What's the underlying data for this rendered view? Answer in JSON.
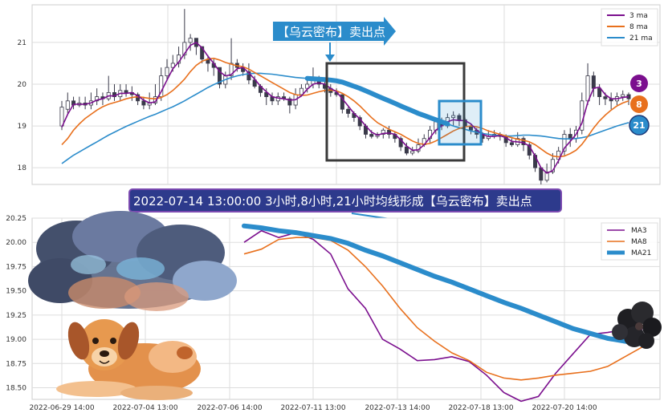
{
  "colors": {
    "ma3": "#7b0f8e",
    "ma8": "#e8701d",
    "ma21": "#2b8ccb",
    "candle_up": "#ffffff",
    "candle_down": "#3a3a4a",
    "callout_bg": "#2b8ccb",
    "banner_bg": "#2d3a8c",
    "grid": "#dddddd"
  },
  "callout": {
    "text": "【乌云密布】卖出点"
  },
  "banner": {
    "text": "2022-07-14 13:00:00 3小时,8小时,21小时均线形成【乌云密布】卖出点"
  },
  "badges": {
    "b3": "3",
    "b8": "8",
    "b21": "21"
  },
  "icons": [
    "storm-cloud-icon",
    "dog-icon",
    "dark-cloud-icon"
  ],
  "chart_data": [
    {
      "type": "candlestick",
      "legend_position": "top-right",
      "grid": true,
      "yticks": [
        "18",
        "19",
        "20",
        "21"
      ],
      "ylim": [
        17.6,
        21.9
      ],
      "legend": [
        {
          "label": "3 ma",
          "color": "#7b0f8e"
        },
        {
          "label": "8 ma",
          "color": "#e8701d"
        },
        {
          "label": "21 ma",
          "color": "#2b8ccb"
        }
      ],
      "candles": [
        [
          19.0,
          19.45,
          19.6,
          18.9
        ],
        [
          19.4,
          19.6,
          19.8,
          19.3
        ],
        [
          19.6,
          19.5,
          19.7,
          19.4
        ],
        [
          19.5,
          19.55,
          19.7,
          19.45
        ],
        [
          19.55,
          19.5,
          19.7,
          19.4
        ],
        [
          19.5,
          19.6,
          19.8,
          19.4
        ],
        [
          19.6,
          19.7,
          19.9,
          19.5
        ],
        [
          19.7,
          19.65,
          19.8,
          19.5
        ],
        [
          19.65,
          19.8,
          20.2,
          19.6
        ],
        [
          19.8,
          19.7,
          20.0,
          19.6
        ],
        [
          19.7,
          19.85,
          20.0,
          19.6
        ],
        [
          19.85,
          19.8,
          20.0,
          19.7
        ],
        [
          19.8,
          19.75,
          19.95,
          19.6
        ],
        [
          19.75,
          19.6,
          19.8,
          19.5
        ],
        [
          19.6,
          19.5,
          19.7,
          19.4
        ],
        [
          19.5,
          19.55,
          19.8,
          19.4
        ],
        [
          19.55,
          19.7,
          20.0,
          19.5
        ],
        [
          19.7,
          20.2,
          20.4,
          19.6
        ],
        [
          20.2,
          20.4,
          20.6,
          20.1
        ],
        [
          20.4,
          20.5,
          20.7,
          20.3
        ],
        [
          20.5,
          20.7,
          20.9,
          20.4
        ],
        [
          20.7,
          21.0,
          21.8,
          20.6
        ],
        [
          21.0,
          21.1,
          21.2,
          20.8
        ],
        [
          21.1,
          20.9,
          21.1,
          20.7
        ],
        [
          20.9,
          20.6,
          20.9,
          20.5
        ],
        [
          20.6,
          20.5,
          20.7,
          20.3
        ],
        [
          20.5,
          20.4,
          20.6,
          20.2
        ],
        [
          20.4,
          20.0,
          20.4,
          19.9
        ],
        [
          20.0,
          20.2,
          20.3,
          19.9
        ],
        [
          20.2,
          20.5,
          21.1,
          20.1
        ],
        [
          20.5,
          20.4,
          20.6,
          20.3
        ],
        [
          20.4,
          20.3,
          20.5,
          20.2
        ],
        [
          20.3,
          20.1,
          20.5,
          20.0
        ],
        [
          20.1,
          19.95,
          20.2,
          19.9
        ],
        [
          19.95,
          19.8,
          20.0,
          19.7
        ],
        [
          19.8,
          19.7,
          19.9,
          19.5
        ],
        [
          19.7,
          19.6,
          19.8,
          19.5
        ],
        [
          19.6,
          19.7,
          19.8,
          19.5
        ],
        [
          19.7,
          19.65,
          19.8,
          19.6
        ],
        [
          19.65,
          19.5,
          19.7,
          19.3
        ],
        [
          19.5,
          19.75,
          19.9,
          19.4
        ],
        [
          19.75,
          19.9,
          20.0,
          19.7
        ],
        [
          19.9,
          20.0,
          20.1,
          19.8
        ],
        [
          20.0,
          20.1,
          20.4,
          19.9
        ],
        [
          20.1,
          20.0,
          20.2,
          19.9
        ],
        [
          20.0,
          19.9,
          20.1,
          19.8
        ],
        [
          19.9,
          19.8,
          20.0,
          19.7
        ],
        [
          19.8,
          19.75,
          19.9,
          19.7
        ],
        [
          19.75,
          19.4,
          19.75,
          19.3
        ],
        [
          19.4,
          19.3,
          19.45,
          19.2
        ],
        [
          19.3,
          19.2,
          19.35,
          19.1
        ],
        [
          19.2,
          19.0,
          19.25,
          18.9
        ],
        [
          19.0,
          18.8,
          19.05,
          18.7
        ],
        [
          18.8,
          18.75,
          18.9,
          18.7
        ],
        [
          18.75,
          18.8,
          18.85,
          18.7
        ],
        [
          18.8,
          18.9,
          18.95,
          18.7
        ],
        [
          18.9,
          18.8,
          19.0,
          18.7
        ],
        [
          18.8,
          18.7,
          18.85,
          18.6
        ],
        [
          18.7,
          18.5,
          18.75,
          18.4
        ],
        [
          18.5,
          18.35,
          18.6,
          18.3
        ],
        [
          18.35,
          18.4,
          18.5,
          18.3
        ],
        [
          18.4,
          18.55,
          18.7,
          18.35
        ],
        [
          18.55,
          18.7,
          18.8,
          18.5
        ],
        [
          18.7,
          18.9,
          19.0,
          18.6
        ],
        [
          18.9,
          19.1,
          19.15,
          18.8
        ],
        [
          19.1,
          19.0,
          19.2,
          18.9
        ],
        [
          19.0,
          19.2,
          19.3,
          18.95
        ],
        [
          19.2,
          19.25,
          19.35,
          19.0
        ],
        [
          19.25,
          19.15,
          19.3,
          19.0
        ],
        [
          19.15,
          19.0,
          19.2,
          18.9
        ],
        [
          19.0,
          18.9,
          19.05,
          18.8
        ],
        [
          18.9,
          18.8,
          18.95,
          18.7
        ],
        [
          18.8,
          18.7,
          18.85,
          18.6
        ],
        [
          18.7,
          18.75,
          18.9,
          18.65
        ],
        [
          18.75,
          18.8,
          18.9,
          18.7
        ],
        [
          18.8,
          18.75,
          18.85,
          18.65
        ],
        [
          18.75,
          18.6,
          18.8,
          18.5
        ],
        [
          18.6,
          18.55,
          18.7,
          18.5
        ],
        [
          18.55,
          18.7,
          18.85,
          18.5
        ],
        [
          18.7,
          18.55,
          18.75,
          18.4
        ],
        [
          18.55,
          18.3,
          18.6,
          18.2
        ],
        [
          18.3,
          18.0,
          18.35,
          17.9
        ],
        [
          18.0,
          17.7,
          18.0,
          17.6
        ],
        [
          17.7,
          17.9,
          18.1,
          17.65
        ],
        [
          17.9,
          18.2,
          18.35,
          17.85
        ],
        [
          18.2,
          18.4,
          18.5,
          18.1
        ],
        [
          18.4,
          18.8,
          18.9,
          18.3
        ],
        [
          18.8,
          18.7,
          18.95,
          18.5
        ],
        [
          18.7,
          18.9,
          19.0,
          18.6
        ],
        [
          18.9,
          19.6,
          19.8,
          18.8
        ],
        [
          19.6,
          20.2,
          20.5,
          19.5
        ],
        [
          20.2,
          19.9,
          20.3,
          19.7
        ],
        [
          19.9,
          19.7,
          20.0,
          19.5
        ],
        [
          19.7,
          19.65,
          19.8,
          19.5
        ],
        [
          19.65,
          19.6,
          19.8,
          19.4
        ],
        [
          19.6,
          19.7,
          19.8,
          19.5
        ],
        [
          19.7,
          19.75,
          19.85,
          19.6
        ],
        [
          19.75,
          19.65,
          19.8,
          19.5
        ]
      ],
      "ma3": [
        18.97,
        19.28,
        19.52,
        19.52,
        19.52,
        19.55,
        19.62,
        19.65,
        19.72,
        19.72,
        19.78,
        19.78,
        19.8,
        19.72,
        19.62,
        19.55,
        19.58,
        19.82,
        20.1,
        20.37,
        20.53,
        20.73,
        20.93,
        21.0,
        20.87,
        20.67,
        20.5,
        20.3,
        20.2,
        20.23,
        20.37,
        20.4,
        20.27,
        20.12,
        19.95,
        19.82,
        19.7,
        19.67,
        19.65,
        19.62,
        19.63,
        19.72,
        19.88,
        20.0,
        20.03,
        20.0,
        19.9,
        19.82,
        19.65,
        19.48,
        19.3,
        19.17,
        19.0,
        18.85,
        18.78,
        18.82,
        18.83,
        18.8,
        18.67,
        18.52,
        18.42,
        18.43,
        18.55,
        18.72,
        18.9,
        19.0,
        19.1,
        19.15,
        19.13,
        19.13,
        19.05,
        18.9,
        18.8,
        18.75,
        18.75,
        18.77,
        18.72,
        18.63,
        18.62,
        18.6,
        18.52,
        18.28,
        18.0,
        17.87,
        17.93,
        18.17,
        18.47,
        18.63,
        18.8,
        19.07,
        19.57,
        19.9,
        19.93,
        19.75,
        19.65,
        19.65,
        19.68,
        19.7
      ],
      "ma8": [
        18.55,
        18.7,
        18.9,
        19.05,
        19.18,
        19.28,
        19.38,
        19.46,
        19.52,
        19.56,
        19.6,
        19.65,
        19.68,
        19.7,
        19.68,
        19.66,
        19.65,
        19.68,
        19.75,
        19.85,
        19.98,
        20.12,
        20.3,
        20.45,
        20.55,
        20.6,
        20.62,
        20.58,
        20.52,
        20.48,
        20.44,
        20.42,
        20.36,
        20.28,
        20.2,
        20.12,
        20.04,
        19.96,
        19.88,
        19.8,
        19.75,
        19.73,
        19.74,
        19.78,
        19.82,
        19.85,
        19.86,
        19.84,
        19.78,
        19.7,
        19.6,
        19.48,
        19.34,
        19.2,
        19.08,
        19.0,
        18.92,
        18.86,
        18.8,
        18.72,
        18.64,
        18.58,
        18.56,
        18.58,
        18.64,
        18.72,
        18.8,
        18.88,
        18.94,
        18.98,
        19.0,
        18.98,
        18.94,
        18.88,
        18.84,
        18.8,
        18.76,
        18.72,
        18.68,
        18.66,
        18.62,
        18.55,
        18.45,
        18.35,
        18.28,
        18.26,
        18.28,
        18.34,
        18.42,
        18.56,
        18.75,
        18.95,
        19.12,
        19.26,
        19.38,
        19.48,
        19.55,
        19.6
      ],
      "ma21": [
        18.1,
        18.2,
        18.3,
        18.38,
        18.46,
        18.54,
        18.62,
        18.7,
        18.78,
        18.85,
        18.92,
        18.99,
        19.05,
        19.11,
        19.17,
        19.23,
        19.28,
        19.34,
        19.4,
        19.46,
        19.53,
        19.6,
        19.68,
        19.76,
        19.84,
        19.92,
        19.99,
        20.05,
        20.11,
        20.16,
        20.2,
        20.23,
        20.25,
        20.26,
        20.26,
        20.25,
        20.24,
        20.22,
        20.2,
        20.18,
        20.16,
        20.15,
        20.14,
        20.13,
        20.12,
        20.11,
        20.1,
        20.08,
        20.05,
        20.0,
        19.95,
        19.9,
        19.84,
        19.78,
        19.72,
        19.66,
        19.6,
        19.54,
        19.48,
        19.42,
        19.36,
        19.3,
        19.25,
        19.2,
        19.15,
        19.1,
        19.05,
        19.0,
        18.96,
        18.92,
        18.88,
        18.85,
        18.82,
        18.8,
        18.78,
        18.77,
        18.76,
        18.76,
        18.77,
        18.78,
        18.78,
        18.77,
        18.76,
        18.74,
        18.72,
        18.7,
        18.69,
        18.69,
        18.7,
        18.72,
        18.75,
        18.8,
        18.85,
        18.9,
        18.95,
        19.0,
        19.04,
        19.08
      ]
    },
    {
      "type": "line",
      "legend_position": "top-right",
      "grid": true,
      "ylim": [
        18.38,
        20.25
      ],
      "yticks": [
        "18.50",
        "18.75",
        "19.00",
        "19.25",
        "19.50",
        "19.75",
        "20.00",
        "20.25"
      ],
      "xticks": [
        "2022-06-29 14:00",
        "2022-07-04 13:00",
        "2022-07-06 14:00",
        "2022-07-11 13:00",
        "2022-07-13 14:00",
        "2022-07-18 13:00",
        "2022-07-20 14:00"
      ],
      "series": [
        {
          "name": "MA3",
          "color": "#7b0f8e",
          "values": [
            20.0,
            20.12,
            20.05,
            20.1,
            20.03,
            19.88,
            19.52,
            19.32,
            19.0,
            18.9,
            18.78,
            18.79,
            18.82,
            18.77,
            18.63,
            18.45,
            18.36,
            18.41,
            18.65,
            18.85,
            19.05,
            19.07,
            19.1,
            19.1
          ]
        },
        {
          "name": "MA8",
          "color": "#e8701d",
          "values": [
            19.88,
            19.93,
            20.03,
            20.05,
            20.05,
            20.02,
            19.92,
            19.75,
            19.55,
            19.32,
            19.12,
            18.98,
            18.86,
            18.78,
            18.66,
            18.6,
            18.58,
            18.6,
            18.63,
            18.65,
            18.67,
            18.72,
            18.82,
            18.92
          ]
        },
        {
          "name": "MA21",
          "color": "#2b8ccb",
          "values": [
            20.17,
            20.15,
            20.12,
            20.1,
            20.07,
            20.04,
            19.99,
            19.92,
            19.86,
            19.79,
            19.72,
            19.65,
            19.59,
            19.52,
            19.45,
            19.38,
            19.32,
            19.25,
            19.18,
            19.11,
            19.06,
            19.01,
            18.98,
            18.95
          ]
        }
      ]
    }
  ]
}
